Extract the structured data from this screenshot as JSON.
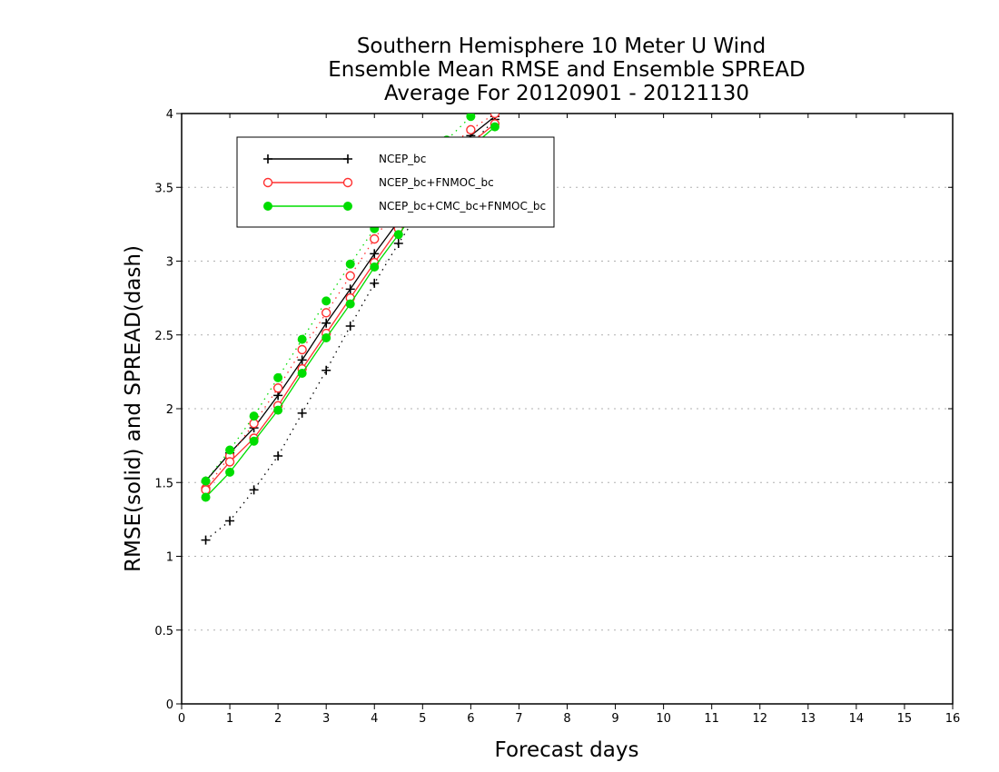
{
  "chart_data": {
    "type": "line",
    "title_lines": [
      "Southern Hemisphere 10 Meter U Wind",
      "Ensemble Mean RMSE and Ensemble SPREAD",
      "Average For 20120901 - 20121130"
    ],
    "xlabel": "Forecast days",
    "ylabel": "RMSE(solid) and SPREAD(dash)",
    "xlim": [
      0,
      16
    ],
    "ylim": [
      0,
      4
    ],
    "x_ticks": [
      "0",
      "1",
      "2",
      "3",
      "4",
      "5",
      "6",
      "7",
      "8",
      "9",
      "10",
      "11",
      "12",
      "13",
      "14",
      "15",
      "16"
    ],
    "y_ticks": [
      "0",
      "0.5",
      "1",
      "1.5",
      "2",
      "2.5",
      "3",
      "3.5",
      "4"
    ],
    "y_grid": true,
    "x_grid": false,
    "legend_placement": "top-left",
    "x": [
      0.5,
      1.0,
      1.5,
      2.0,
      2.5,
      3.0,
      3.5,
      4.0,
      4.5,
      5.0,
      5.5,
      6.0,
      6.5
    ],
    "series": [
      {
        "name": "NCEP_bc",
        "color": "#000000",
        "marker": "plus",
        "rmse": [
          1.51,
          1.7,
          1.87,
          2.09,
          2.33,
          2.58,
          2.81,
          3.05,
          3.27,
          3.48,
          3.68,
          3.85,
          3.98
        ],
        "spread": [
          1.11,
          1.24,
          1.45,
          1.68,
          1.97,
          2.26,
          2.56,
          2.85,
          3.12,
          3.37,
          3.59,
          3.79,
          3.96
        ]
      },
      {
        "name": "NCEP_bc+FNMOC_bc",
        "color": "#ff3030",
        "marker": "open-circle",
        "rmse": [
          1.45,
          1.64,
          1.8,
          2.02,
          2.27,
          2.51,
          2.75,
          2.99,
          3.22,
          3.43,
          3.63,
          3.8,
          3.93
        ],
        "spread": [
          1.46,
          1.68,
          1.9,
          2.14,
          2.4,
          2.65,
          2.9,
          3.15,
          3.38,
          3.58,
          3.76,
          3.89,
          4.0
        ]
      },
      {
        "name": "NCEP_bc+CMC_bc+FNMOC_bc",
        "color": "#00dd00",
        "marker": "filled-circle",
        "rmse": [
          1.4,
          1.57,
          1.78,
          1.99,
          2.24,
          2.48,
          2.71,
          2.96,
          3.18,
          3.4,
          3.6,
          3.77,
          3.91
        ],
        "spread": [
          1.51,
          1.72,
          1.95,
          2.21,
          2.47,
          2.73,
          2.98,
          3.22,
          3.44,
          3.64,
          3.82,
          3.98,
          4.1
        ]
      }
    ]
  }
}
